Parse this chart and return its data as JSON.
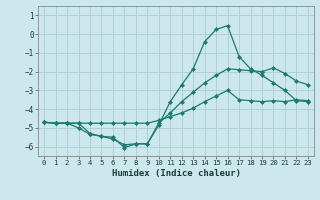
{
  "xlabel": "Humidex (Indice chaleur)",
  "xlim": [
    -0.5,
    23.5
  ],
  "ylim": [
    -6.5,
    1.5
  ],
  "yticks": [
    1,
    0,
    -1,
    -2,
    -3,
    -4,
    -5,
    -6
  ],
  "xticks": [
    0,
    1,
    2,
    3,
    4,
    5,
    6,
    7,
    8,
    9,
    10,
    11,
    12,
    13,
    14,
    15,
    16,
    17,
    18,
    19,
    20,
    21,
    22,
    23
  ],
  "background_color": "#cce8ec",
  "grid_color": "#aaccd4",
  "line_color": "#1a7a6e",
  "lines": [
    {
      "x": [
        0,
        1,
        2,
        3,
        4,
        5,
        6,
        7,
        8,
        9,
        10,
        11,
        12,
        13,
        14,
        15,
        16,
        17,
        18,
        19,
        20,
        21,
        22,
        23
      ],
      "y": [
        -4.7,
        -4.75,
        -4.75,
        -5.0,
        -5.35,
        -5.45,
        -5.6,
        -5.9,
        -5.85,
        -5.85,
        -4.85,
        -3.6,
        -2.7,
        -1.85,
        -0.4,
        0.25,
        0.45,
        -1.2,
        -1.85,
        -2.2,
        -2.6,
        -3.0,
        -3.55,
        -3.6
      ]
    },
    {
      "x": [
        0,
        1,
        2,
        3,
        4,
        5,
        6,
        7,
        8,
        9,
        10,
        11,
        12,
        13,
        14,
        15,
        16,
        17,
        18,
        19,
        20,
        21,
        22,
        23
      ],
      "y": [
        -4.7,
        -4.75,
        -4.75,
        -4.75,
        -4.75,
        -4.75,
        -4.75,
        -4.75,
        -4.75,
        -4.75,
        -4.6,
        -4.4,
        -4.2,
        -3.95,
        -3.6,
        -3.3,
        -3.0,
        -3.5,
        -3.55,
        -3.6,
        -3.55,
        -3.6,
        -3.5,
        -3.55
      ]
    },
    {
      "x": [
        0,
        1,
        2,
        3,
        4,
        5,
        6,
        7,
        8,
        9,
        10,
        11,
        12,
        13,
        14,
        15,
        16,
        17,
        18,
        19,
        20,
        21,
        22,
        23
      ],
      "y": [
        -4.7,
        -4.75,
        -4.75,
        -4.75,
        -5.3,
        -5.45,
        -5.5,
        -6.05,
        -5.85,
        -5.85,
        -4.75,
        -4.2,
        -3.6,
        -3.1,
        -2.6,
        -2.2,
        -1.85,
        -1.9,
        -1.95,
        -2.0,
        -1.8,
        -2.1,
        -2.5,
        -2.7
      ]
    }
  ]
}
